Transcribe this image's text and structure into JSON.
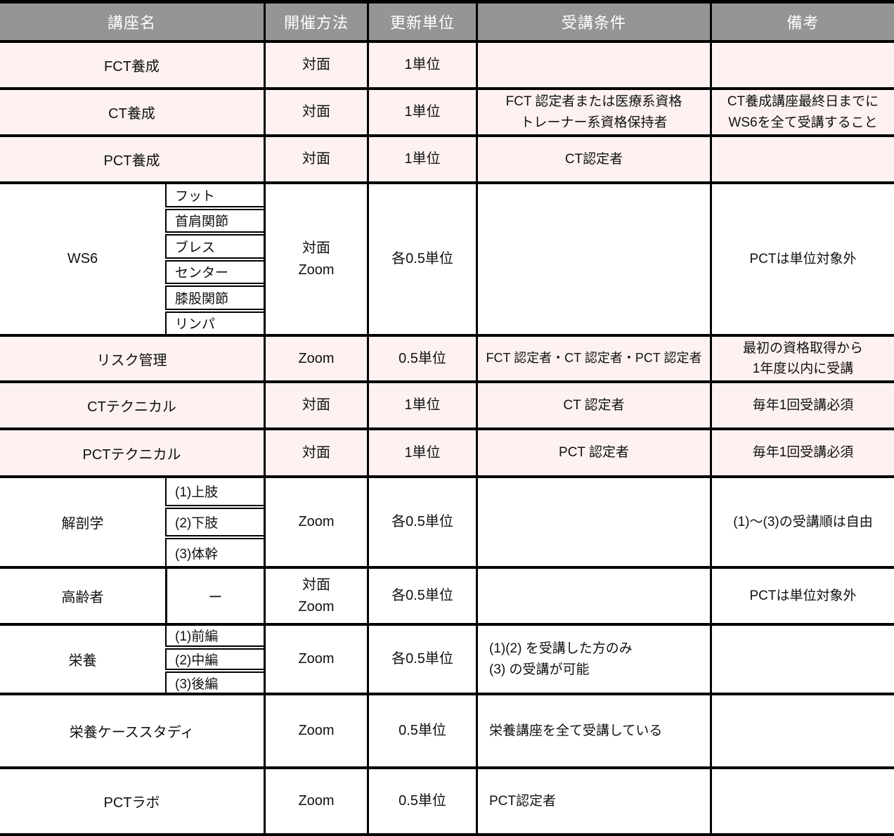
{
  "colors": {
    "header_bg": "#959595",
    "header_text": "#ffffff",
    "row_pink": "#fdf2f1",
    "row_white": "#ffffff",
    "border": "#000000",
    "body_text": "#111111"
  },
  "table": {
    "headers": [
      "講座名",
      "開催方法",
      "更新単位",
      "受講条件",
      "備考"
    ],
    "rows": [
      {
        "course": "FCT養成",
        "method": "対面",
        "unit": "1単位",
        "condition": "",
        "note": "",
        "tone": "pink"
      },
      {
        "course": "CT養成",
        "method": "対面",
        "unit": "1単位",
        "condition": "FCT 認定者または医療系資格\nトレーナー系資格保持者",
        "note": "CT養成講座最終日までに\nWS6を全て受講すること",
        "tone": "pink"
      },
      {
        "course": "PCT養成",
        "method": "対面",
        "unit": "1単位",
        "condition": "CT認定者",
        "note": "",
        "tone": "pink"
      },
      {
        "course": "WS6",
        "sub_items": [
          "フット",
          "首肩関節",
          "ブレス",
          "センター",
          "膝股関節",
          "リンパ"
        ],
        "method": "対面\nZoom",
        "unit": "各0.5単位",
        "condition": "",
        "note": "PCTは単位対象外",
        "tone": "white"
      },
      {
        "course": "リスク管理",
        "method": "Zoom",
        "unit": "0.5単位",
        "condition": "FCT 認定者・CT 認定者・PCT 認定者",
        "condition_small": true,
        "note": "最初の資格取得から\n1年度以内に受講",
        "tone": "pink"
      },
      {
        "course": "CTテクニカル",
        "method": "対面",
        "unit": "1単位",
        "condition": "CT 認定者",
        "note": "毎年1回受講必須",
        "tone": "pink"
      },
      {
        "course": "PCTテクニカル",
        "method": "対面",
        "unit": "1単位",
        "condition": "PCT 認定者",
        "note": "毎年1回受講必須",
        "tone": "pink"
      },
      {
        "course": "解剖学",
        "sub_items": [
          "(1)上肢",
          "(2)下肢",
          "(3)体幹"
        ],
        "method": "Zoom",
        "unit": "各0.5単位",
        "condition": "",
        "note": "(1)〜(3)の受講順は自由",
        "tone": "white"
      },
      {
        "course": "高齢者",
        "sub_dash": "ー",
        "method": "対面\nZoom",
        "unit": "各0.5単位",
        "condition": "",
        "note": "PCTは単位対象外",
        "tone": "white"
      },
      {
        "course": "栄養",
        "sub_items": [
          "(1)前編",
          "(2)中編",
          "(3)後編"
        ],
        "method": "Zoom",
        "unit": "各0.5単位",
        "condition": "(1)(2) を受講した方のみ\n(3) の受講が可能",
        "condition_align": "left",
        "note": "",
        "tone": "white"
      },
      {
        "course": "栄養ケーススタディ",
        "method": "Zoom",
        "unit": "0.5単位",
        "condition": "栄養講座を全て受講している",
        "condition_align": "left",
        "note": "",
        "tone": "white"
      },
      {
        "course": "PCTラボ",
        "method": "Zoom",
        "unit": "0.5単位",
        "condition": "PCT認定者",
        "condition_align": "left",
        "note": "",
        "tone": "white"
      }
    ]
  }
}
